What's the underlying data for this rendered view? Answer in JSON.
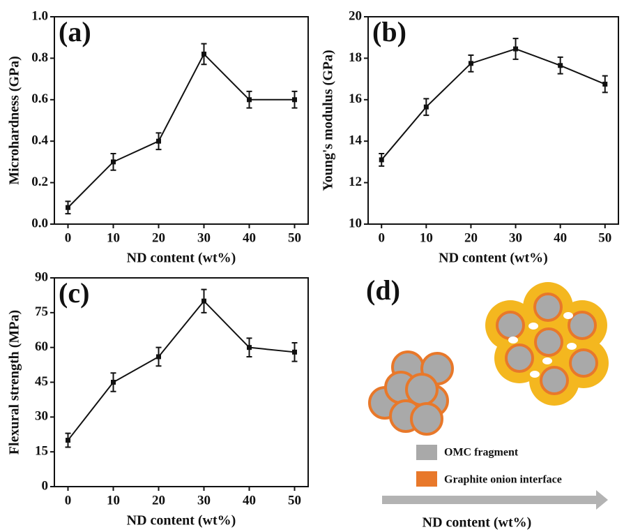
{
  "chart_data": [
    {
      "type": "line",
      "panel": "(a)",
      "xlabel": "ND content (wt%)",
      "ylabel": "Microhardness (GPa)",
      "x": [
        0,
        10,
        20,
        30,
        40,
        50
      ],
      "xlim": [
        -3,
        53
      ],
      "xticks": [
        0,
        10,
        20,
        30,
        40,
        50
      ],
      "ylim": [
        0,
        1.0
      ],
      "yticks": [
        {
          "value": 0,
          "label": "0.0"
        },
        0.2,
        0.4,
        0.6,
        0.8,
        {
          "value": 1.0,
          "label": "1.0"
        }
      ],
      "series": [
        {
          "color": "#111111",
          "values": [
            0.08,
            0.3,
            0.4,
            0.82,
            0.6,
            0.6
          ],
          "errors": [
            0.03,
            0.04,
            0.04,
            0.05,
            0.04,
            0.04
          ]
        }
      ]
    },
    {
      "type": "line",
      "panel": "(b)",
      "xlabel": "ND content (wt%)",
      "ylabel": "Young's modulus (GPa)",
      "x": [
        0,
        10,
        20,
        30,
        40,
        50
      ],
      "xlim": [
        -3,
        53
      ],
      "xticks": [
        0,
        10,
        20,
        30,
        40,
        50
      ],
      "ylim": [
        10,
        20
      ],
      "yticks": [
        10,
        12,
        14,
        16,
        18,
        20
      ],
      "series": [
        {
          "color": "#111111",
          "values": [
            13.1,
            15.65,
            17.75,
            18.45,
            17.65,
            16.75
          ],
          "errors": [
            0.3,
            0.4,
            0.4,
            0.5,
            0.4,
            0.4
          ]
        }
      ]
    },
    {
      "type": "line",
      "panel": "(c)",
      "xlabel": "ND content (wt%)",
      "ylabel": "Flexural strength (MPa)",
      "x": [
        0,
        10,
        20,
        30,
        40,
        50
      ],
      "xlim": [
        -3,
        53
      ],
      "xticks": [
        0,
        10,
        20,
        30,
        40,
        50
      ],
      "ylim": [
        0,
        90
      ],
      "yticks": [
        0,
        15,
        30,
        45,
        60,
        75,
        90
      ],
      "series": [
        {
          "color": "#111111",
          "values": [
            20,
            45,
            56,
            80,
            60,
            58
          ],
          "errors": [
            3,
            4,
            4,
            5,
            4,
            4
          ]
        }
      ]
    }
  ],
  "diagram": {
    "panel": "(d)",
    "legend": [
      "OMC fragment",
      "Graphite onion interface"
    ],
    "arrow_label": "ND content (wt%)"
  }
}
